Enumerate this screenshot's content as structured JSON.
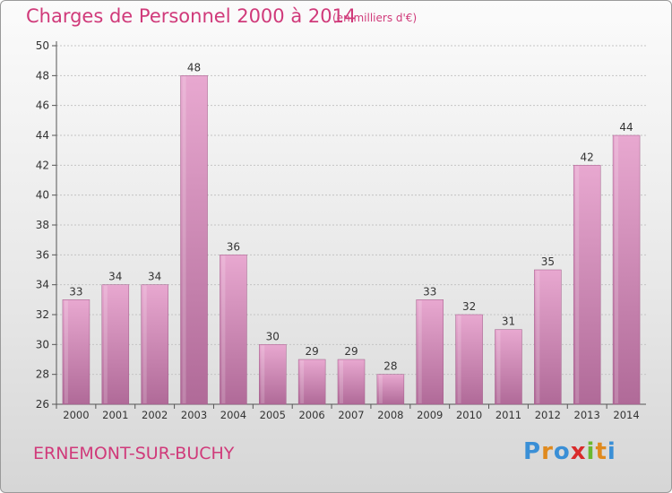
{
  "title": "Charges de Personnel 2000 à 2014",
  "subtitle": "(en milliers d'€)",
  "commune": "ERNEMONT-SUR-BUCHY",
  "logo": {
    "text": "Proxiti",
    "letters": [
      {
        "char": "P",
        "color": "#3a8fd6"
      },
      {
        "char": "r",
        "color": "#e08a1e"
      },
      {
        "char": "o",
        "color": "#3a8fd6"
      },
      {
        "char": "x",
        "color": "#d92b2b"
      },
      {
        "char": "i",
        "color": "#6ab82f"
      },
      {
        "char": "t",
        "color": "#e08a1e"
      },
      {
        "char": "i",
        "color": "#3a8fd6"
      }
    ]
  },
  "colors": {
    "accent": "#d03a7a",
    "bar_light": "#e8a8d0",
    "bar_dark": "#b06a98"
  },
  "chart_data": {
    "type": "bar",
    "title": "Charges de Personnel 2000 à 2014",
    "subtitle": "(en milliers d'€)",
    "categories": [
      "2000",
      "2001",
      "2002",
      "2003",
      "2004",
      "2005",
      "2006",
      "2007",
      "2008",
      "2009",
      "2010",
      "2011",
      "2012",
      "2013",
      "2014"
    ],
    "values": [
      33,
      34,
      34,
      48,
      36,
      30,
      29,
      29,
      28,
      33,
      32,
      31,
      35,
      42,
      44
    ],
    "ylim": [
      26,
      50
    ],
    "yticks": [
      26,
      28,
      30,
      32,
      34,
      36,
      38,
      40,
      42,
      44,
      46,
      48,
      50
    ],
    "grid": true,
    "data_labels": true
  }
}
